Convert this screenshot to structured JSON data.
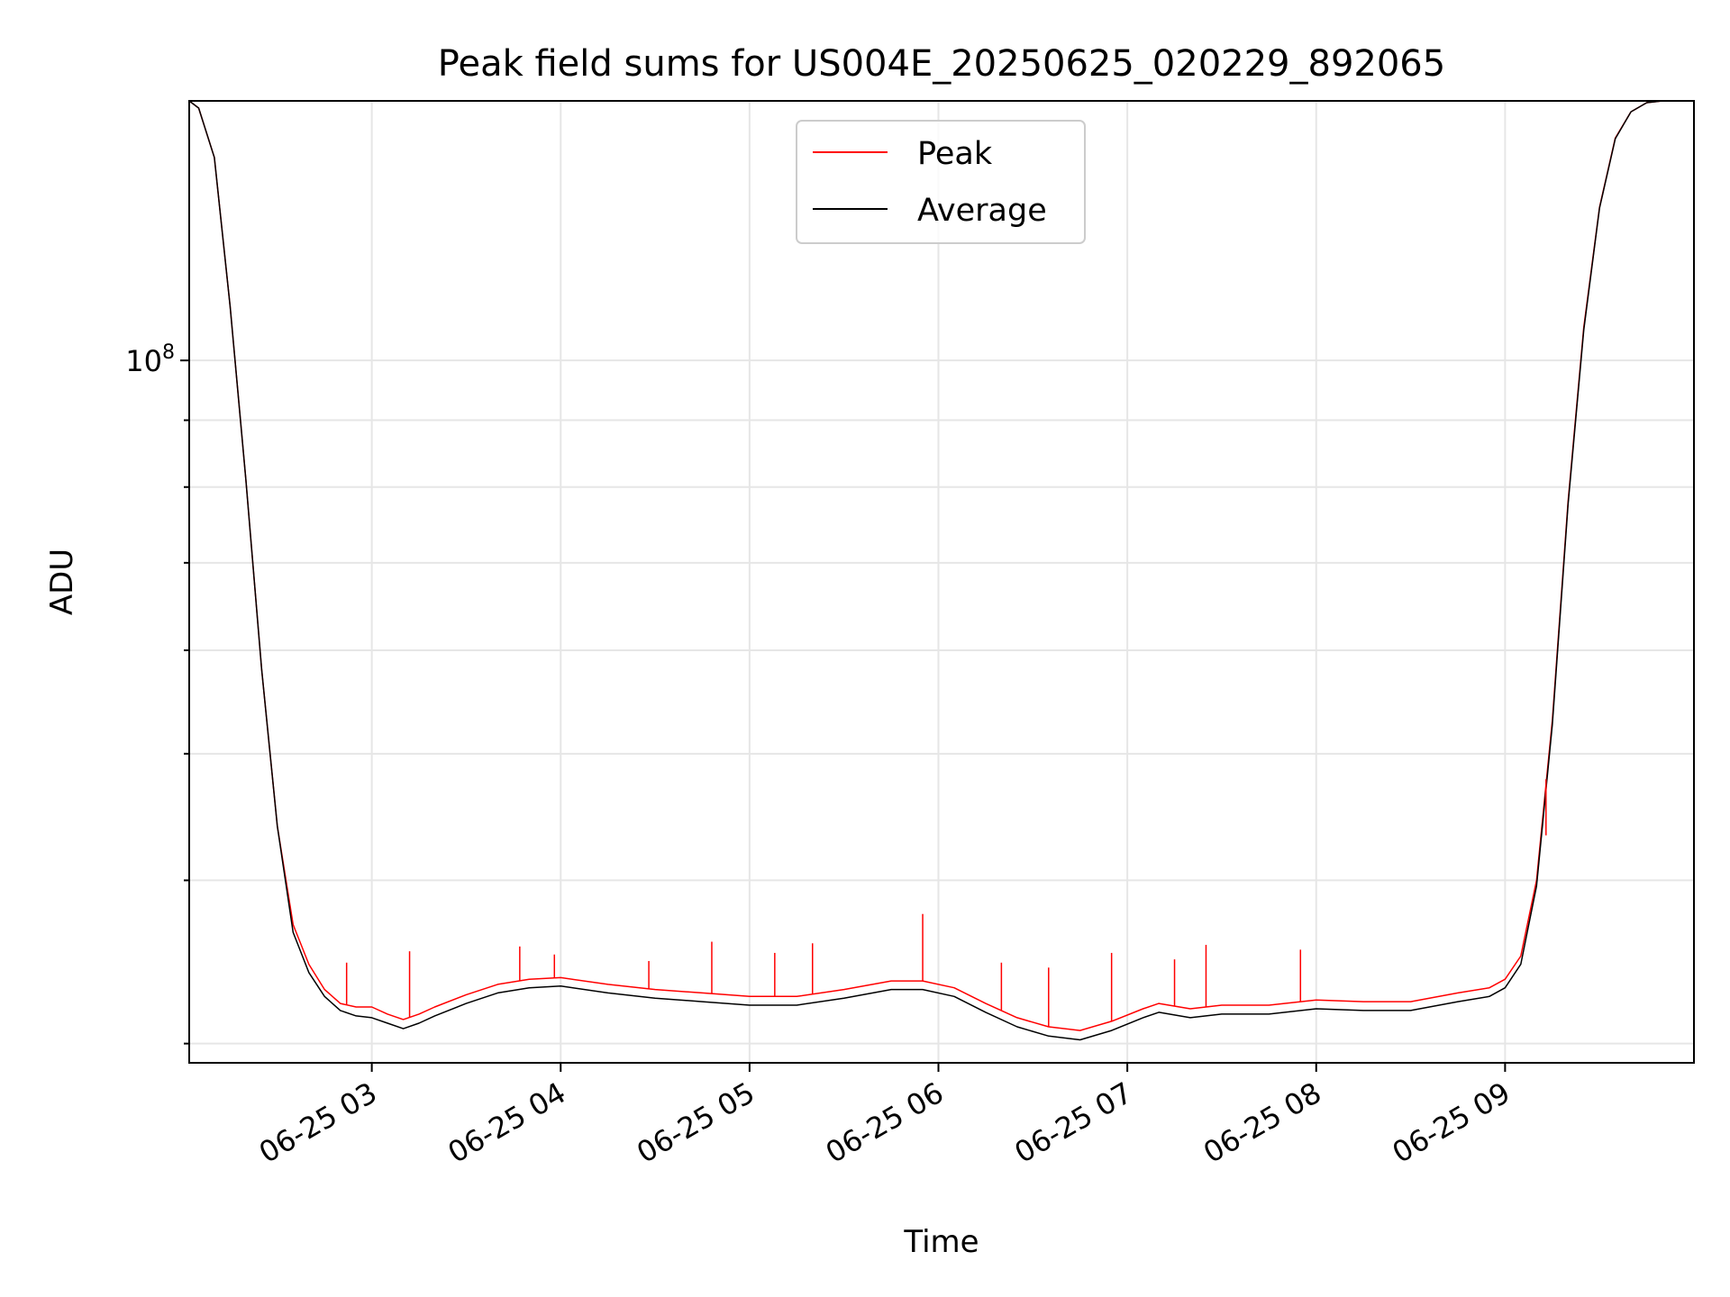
{
  "chart_data": {
    "type": "line",
    "title": "Peak field sums for US004E_20250625_020229_892065",
    "xlabel": "Time",
    "ylabel": "ADU",
    "yscale": "log",
    "grid": true,
    "legend_position": "top-center",
    "xlim": [
      "2025-06-25 02:02",
      "2025-06-25 10:00"
    ],
    "ylim": [
      29000000,
      158000000
    ],
    "x_ticks": [
      {
        "value": "2025-06-25 03:00",
        "label": "06-25 03"
      },
      {
        "value": "2025-06-25 04:00",
        "label": "06-25 04"
      },
      {
        "value": "2025-06-25 05:00",
        "label": "06-25 05"
      },
      {
        "value": "2025-06-25 06:00",
        "label": "06-25 06"
      },
      {
        "value": "2025-06-25 07:00",
        "label": "06-25 07"
      },
      {
        "value": "2025-06-25 08:00",
        "label": "06-25 08"
      },
      {
        "value": "2025-06-25 09:00",
        "label": "06-25 09"
      }
    ],
    "y_ticks": [
      {
        "value": 100000000,
        "label": "10^8"
      }
    ],
    "y_minor_ticks": [
      30000000,
      40000000,
      50000000,
      60000000,
      70000000,
      80000000,
      90000000
    ],
    "series": [
      {
        "name": "Peak",
        "color": "#ff0000",
        "x": [
          "2025-06-25 02:02",
          "2025-06-25 02:05",
          "2025-06-25 02:10",
          "2025-06-25 02:15",
          "2025-06-25 02:20",
          "2025-06-25 02:25",
          "2025-06-25 02:30",
          "2025-06-25 02:35",
          "2025-06-25 02:40",
          "2025-06-25 02:45",
          "2025-06-25 02:50",
          "2025-06-25 02:55",
          "2025-06-25 03:00",
          "2025-06-25 03:05",
          "2025-06-25 03:10",
          "2025-06-25 03:15",
          "2025-06-25 03:20",
          "2025-06-25 03:30",
          "2025-06-25 03:40",
          "2025-06-25 03:50",
          "2025-06-25 04:00",
          "2025-06-25 04:15",
          "2025-06-25 04:30",
          "2025-06-25 04:45",
          "2025-06-25 05:00",
          "2025-06-25 05:15",
          "2025-06-25 05:30",
          "2025-06-25 05:45",
          "2025-06-25 05:55",
          "2025-06-25 06:05",
          "2025-06-25 06:15",
          "2025-06-25 06:25",
          "2025-06-25 06:35",
          "2025-06-25 06:45",
          "2025-06-25 06:55",
          "2025-06-25 07:05",
          "2025-06-25 07:10",
          "2025-06-25 07:20",
          "2025-06-25 07:30",
          "2025-06-25 07:45",
          "2025-06-25 08:00",
          "2025-06-25 08:15",
          "2025-06-25 08:30",
          "2025-06-25 08:45",
          "2025-06-25 08:55",
          "2025-06-25 09:00",
          "2025-06-25 09:05",
          "2025-06-25 09:10",
          "2025-06-25 09:15",
          "2025-06-25 09:20",
          "2025-06-25 09:25",
          "2025-06-25 09:30",
          "2025-06-25 09:35",
          "2025-06-25 09:40",
          "2025-06-25 09:45",
          "2025-06-25 09:50",
          "2025-06-25 09:55",
          "2025-06-25 10:00"
        ],
        "y": [
          158000000,
          156000000,
          143000000,
          110000000,
          81000000,
          58000000,
          44000000,
          37000000,
          34500000,
          33000000,
          32200000,
          32000000,
          32000000,
          31600000,
          31300000,
          31600000,
          32000000,
          32700000,
          33300000,
          33600000,
          33700000,
          33300000,
          33000000,
          32800000,
          32600000,
          32600000,
          33000000,
          33500000,
          33500000,
          33100000,
          32200000,
          31400000,
          30900000,
          30700000,
          31200000,
          31900000,
          32200000,
          31900000,
          32100000,
          32100000,
          32400000,
          32300000,
          32300000,
          32800000,
          33100000,
          33600000,
          35000000,
          40000000,
          53000000,
          78000000,
          106000000,
          131000000,
          148000000,
          155000000,
          157500000,
          158000000,
          158000000,
          158000000
        ]
      },
      {
        "name": "Average",
        "color": "#000000",
        "x": [
          "2025-06-25 02:02",
          "2025-06-25 02:05",
          "2025-06-25 02:10",
          "2025-06-25 02:15",
          "2025-06-25 02:20",
          "2025-06-25 02:25",
          "2025-06-25 02:30",
          "2025-06-25 02:35",
          "2025-06-25 02:40",
          "2025-06-25 02:45",
          "2025-06-25 02:50",
          "2025-06-25 02:55",
          "2025-06-25 03:00",
          "2025-06-25 03:05",
          "2025-06-25 03:10",
          "2025-06-25 03:15",
          "2025-06-25 03:20",
          "2025-06-25 03:30",
          "2025-06-25 03:40",
          "2025-06-25 03:50",
          "2025-06-25 04:00",
          "2025-06-25 04:15",
          "2025-06-25 04:30",
          "2025-06-25 04:45",
          "2025-06-25 05:00",
          "2025-06-25 05:15",
          "2025-06-25 05:30",
          "2025-06-25 05:45",
          "2025-06-25 05:55",
          "2025-06-25 06:05",
          "2025-06-25 06:15",
          "2025-06-25 06:25",
          "2025-06-25 06:35",
          "2025-06-25 06:45",
          "2025-06-25 06:55",
          "2025-06-25 07:05",
          "2025-06-25 07:10",
          "2025-06-25 07:20",
          "2025-06-25 07:30",
          "2025-06-25 07:45",
          "2025-06-25 08:00",
          "2025-06-25 08:15",
          "2025-06-25 08:30",
          "2025-06-25 08:45",
          "2025-06-25 08:55",
          "2025-06-25 09:00",
          "2025-06-25 09:05",
          "2025-06-25 09:10",
          "2025-06-25 09:15",
          "2025-06-25 09:20",
          "2025-06-25 09:25",
          "2025-06-25 09:30",
          "2025-06-25 09:35",
          "2025-06-25 09:40",
          "2025-06-25 09:45",
          "2025-06-25 09:50",
          "2025-06-25 09:55",
          "2025-06-25 10:00"
        ],
        "y": [
          158000000,
          156000000,
          143000000,
          110000000,
          81000000,
          58000000,
          44000000,
          36500000,
          34000000,
          32600000,
          31800000,
          31500000,
          31400000,
          31100000,
          30800000,
          31100000,
          31500000,
          32200000,
          32800000,
          33100000,
          33200000,
          32800000,
          32500000,
          32300000,
          32100000,
          32100000,
          32500000,
          33000000,
          33000000,
          32600000,
          31700000,
          30900000,
          30400000,
          30200000,
          30700000,
          31400000,
          31700000,
          31400000,
          31600000,
          31600000,
          31900000,
          31800000,
          31800000,
          32300000,
          32600000,
          33100000,
          34500000,
          39600000,
          52600000,
          77600000,
          105500000,
          130800000,
          147800000,
          155000000,
          157500000,
          158000000,
          158000000,
          158000000
        ]
      }
    ],
    "annotations": [
      {
        "series": "Peak",
        "x": "2025-06-25 02:52",
        "y": 34600000
      },
      {
        "series": "Peak",
        "x": "2025-06-25 03:12",
        "y": 35300000
      },
      {
        "series": "Peak",
        "x": "2025-06-25 03:47",
        "y": 35600000
      },
      {
        "series": "Peak",
        "x": "2025-06-25 03:58",
        "y": 35100000
      },
      {
        "series": "Peak",
        "x": "2025-06-25 04:28",
        "y": 34700000
      },
      {
        "series": "Peak",
        "x": "2025-06-25 04:48",
        "y": 35900000
      },
      {
        "series": "Peak",
        "x": "2025-06-25 05:08",
        "y": 35200000
      },
      {
        "series": "Peak",
        "x": "2025-06-25 05:20",
        "y": 35800000
      },
      {
        "series": "Peak",
        "x": "2025-06-25 05:55",
        "y": 37700000
      },
      {
        "series": "Peak",
        "x": "2025-06-25 06:20",
        "y": 34600000
      },
      {
        "series": "Peak",
        "x": "2025-06-25 06:35",
        "y": 34300000
      },
      {
        "series": "Peak",
        "x": "2025-06-25 06:55",
        "y": 35200000
      },
      {
        "series": "Peak",
        "x": "2025-06-25 07:15",
        "y": 34800000
      },
      {
        "series": "Peak",
        "x": "2025-06-25 07:25",
        "y": 35700000
      },
      {
        "series": "Peak",
        "x": "2025-06-25 07:55",
        "y": 35400000
      },
      {
        "series": "Peak",
        "x": "2025-06-25 09:13",
        "y": 43300000
      }
    ]
  },
  "legend": [
    {
      "label": "Peak",
      "color": "#ff0000"
    },
    {
      "label": "Average",
      "color": "#000000"
    }
  ]
}
